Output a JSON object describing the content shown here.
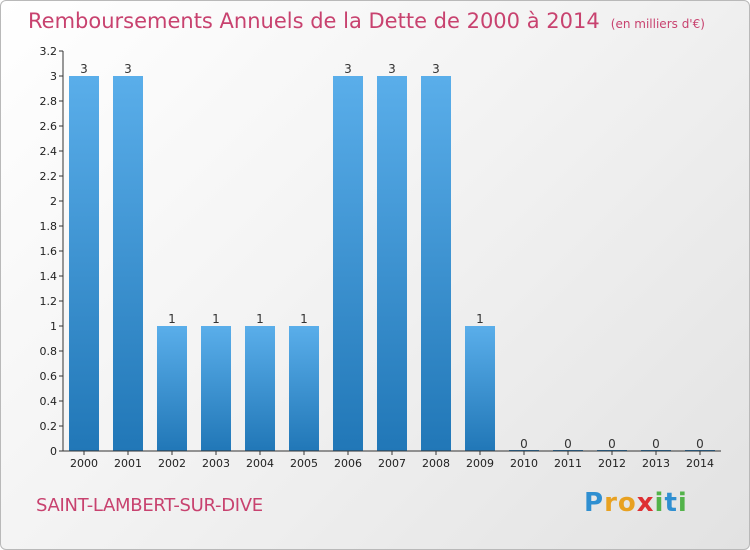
{
  "title": "Remboursements Annuels de la Dette de 2000 à 2014",
  "subtitle": "(en milliers d'€)",
  "commune": "SAINT-LAMBERT-SUR-DIVE",
  "logo": {
    "letters": [
      "P",
      "r",
      "o",
      "x",
      "i",
      "t",
      "i"
    ],
    "colors": [
      "#2f8fd1",
      "#e8a121",
      "#e8a121",
      "#de2f33",
      "#53b34a",
      "#2f8fd1",
      "#53b34a"
    ]
  },
  "colors": {
    "bar_top": "#5aaeea",
    "bar_bottom": "#2177b7",
    "title": "#c8426f"
  },
  "chart_data": {
    "type": "bar",
    "categories": [
      "2000",
      "2001",
      "2002",
      "2003",
      "2004",
      "2005",
      "2006",
      "2007",
      "2008",
      "2009",
      "2010",
      "2011",
      "2012",
      "2013",
      "2014"
    ],
    "values": [
      3,
      3,
      1,
      1,
      1,
      1,
      3,
      3,
      3,
      1,
      0,
      0,
      0,
      0,
      0
    ],
    "data_labels": [
      "3",
      "3",
      "1",
      "1",
      "1",
      "1",
      "3",
      "3",
      "3",
      "1",
      "0",
      "0",
      "0",
      "0",
      "0"
    ],
    "y_ticks": [
      {
        "v": 0,
        "label": "0"
      },
      {
        "v": 0.2,
        "label": "0.2"
      },
      {
        "v": 0.4,
        "label": "0.4"
      },
      {
        "v": 0.6,
        "label": "0.6"
      },
      {
        "v": 0.8,
        "label": "0.8"
      },
      {
        "v": 1,
        "label": "1"
      },
      {
        "v": 1.2,
        "label": "1.2"
      },
      {
        "v": 1.4,
        "label": "1.4"
      },
      {
        "v": 1.6,
        "label": "1.6"
      },
      {
        "v": 1.8,
        "label": "1.8"
      },
      {
        "v": 2,
        "label": "2"
      },
      {
        "v": 2.2,
        "label": "2.2"
      },
      {
        "v": 2.4,
        "label": "2.4"
      },
      {
        "v": 2.6,
        "label": "2.6"
      },
      {
        "v": 2.8,
        "label": "2.8"
      },
      {
        "v": 3,
        "label": "3"
      },
      {
        "v": 3.2,
        "label": "3.2"
      }
    ],
    "ylim": [
      0,
      3.2
    ],
    "grid": false,
    "legend": "none"
  }
}
